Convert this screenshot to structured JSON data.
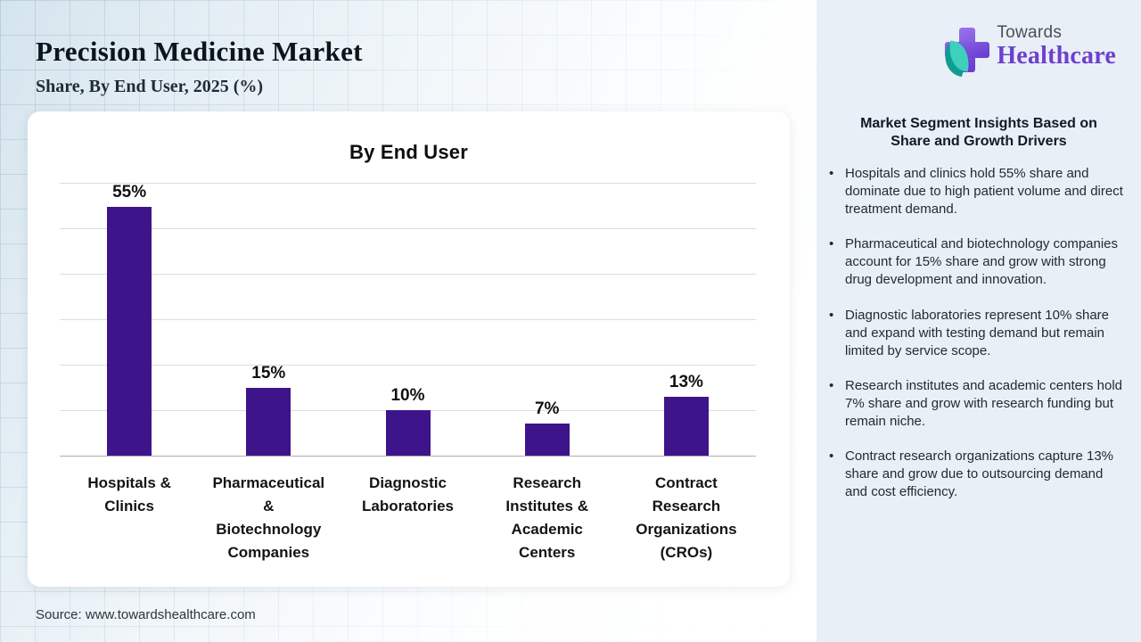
{
  "page": {
    "title": "Precision Medicine Market",
    "subtitle": "Share, By End User, 2025 (%)",
    "source": "Source: www.towardshealthcare.com"
  },
  "logo": {
    "brand_top": "Towards",
    "brand_bottom": "Healthcare",
    "icon": "medical-cross-with-leaf",
    "purple": "#6c40cf",
    "teal": "#3fd0bd"
  },
  "chart_data": {
    "type": "bar",
    "title": "By End User",
    "categories": [
      "Hospitals & Clinics",
      "Pharmaceutical & Biotechnology Companies",
      "Diagnostic Laboratories",
      "Research Institutes & Academic Centers",
      "Contract Research Organizations (CROs)"
    ],
    "category_display": [
      "Hospitals &\nClinics",
      "Pharmaceutical\n&\nBiotechnology\nCompanies",
      "Diagnostic\nLaboratories",
      "Research\nInstitutes &\nAcademic\nCenters",
      "Contract\nResearch\nOrganizations\n(CROs)"
    ],
    "values": [
      55,
      15,
      10,
      7,
      13
    ],
    "value_labels": [
      "55%",
      "15%",
      "10%",
      "7%",
      "13%"
    ],
    "xlabel": "",
    "ylabel": "",
    "ylim": [
      0,
      60
    ],
    "grid": true,
    "legend": "none",
    "bar_color": "#3e148b"
  },
  "insights": {
    "heading": "Market Segment Insights Based on Share and Growth Drivers",
    "bullets": [
      "Hospitals and clinics hold 55% share and dominate due to high patient volume and direct treatment demand.",
      "Pharmaceutical and biotechnology companies account for 15% share and grow with strong drug development and innovation.",
      "Diagnostic laboratories represent 10% share and expand with testing demand but remain limited by service scope.",
      "Research institutes and academic centers hold 7% share and grow with research funding but remain niche.",
      "Contract research organizations capture 13% share and grow due to outsourcing demand and cost efficiency."
    ]
  }
}
